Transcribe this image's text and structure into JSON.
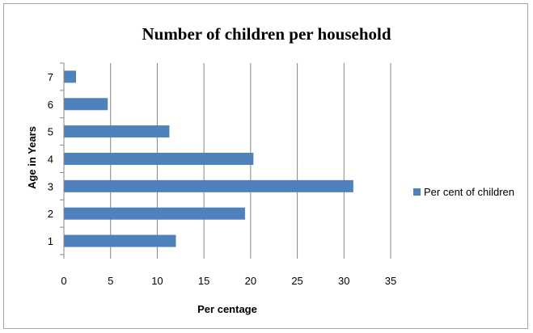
{
  "chart_data": {
    "type": "bar",
    "orientation": "horizontal",
    "title": "Number of children per household",
    "xlabel": "Per centage",
    "ylabel": "Age in Years",
    "categories": [
      "1",
      "2",
      "3",
      "4",
      "5",
      "6",
      "7"
    ],
    "series": [
      {
        "name": "Per cent of children",
        "color": "#4f81bd",
        "values": [
          12.0,
          19.4,
          31.0,
          20.3,
          11.3,
          4.7,
          1.3
        ]
      }
    ],
    "xlim": [
      0,
      35
    ],
    "xticks": [
      0,
      5,
      10,
      15,
      20,
      25,
      30,
      35
    ],
    "grid": "vertical",
    "legend_position": "right"
  }
}
